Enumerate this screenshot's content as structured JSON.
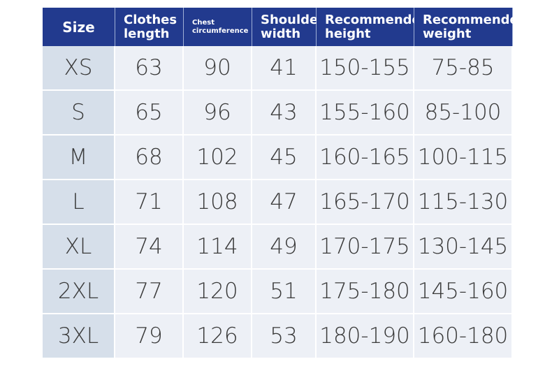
{
  "table": {
    "header": [
      [
        "Size"
      ],
      [
        "Clothes",
        "length"
      ],
      [
        "Chest",
        "circumference"
      ],
      [
        "Shoulder",
        "width"
      ],
      [
        "Recommended",
        "height"
      ],
      [
        "Recommended",
        "weight"
      ]
    ],
    "rows": [
      [
        "XS",
        63,
        90,
        41,
        "150-155",
        "75-85"
      ],
      [
        "S",
        65,
        96,
        43,
        "155-160",
        "85-100"
      ],
      [
        "M",
        68,
        102,
        45,
        "160-165",
        "100-115"
      ],
      [
        "L",
        71,
        108,
        47,
        "165-170",
        "115-130"
      ],
      [
        "XL",
        74,
        114,
        49,
        "170-175",
        "130-145"
      ],
      [
        "2XL",
        77,
        120,
        51,
        "175-180",
        "145-160"
      ],
      [
        "3XL",
        79,
        126,
        53,
        "180-190",
        "160-180"
      ]
    ]
  }
}
